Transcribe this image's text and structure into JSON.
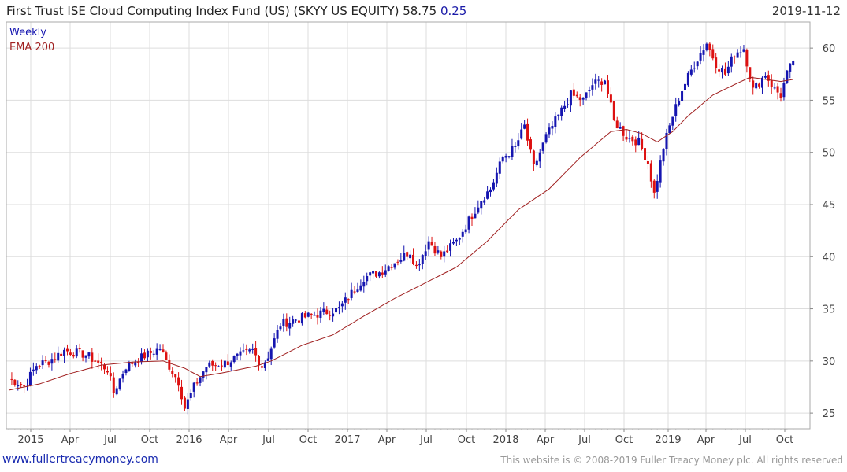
{
  "header": {
    "title": "First Trust ISE Cloud Computing Index Fund (US) (SKYY US EQUITY)",
    "last": "58.75",
    "change": "0.25",
    "date": "2019-11-12"
  },
  "footer": {
    "link": "www.fullertreacymoney.com",
    "copyright": "This website is © 2008-2019 Fuller Treacy Money plc. All rights reserved"
  },
  "colors": {
    "up": "#1515b0",
    "down": "#dd1111",
    "ema": "#a02020",
    "grid": "#dddddd",
    "frame": "#aaaaaa"
  },
  "chart_data": {
    "type": "candlestick",
    "title": "First Trust ISE Cloud Computing Index Fund (US) (SKYY US EQUITY)",
    "frequency": "Weekly",
    "legend": [
      {
        "label": "Weekly",
        "color": "#1515b0"
      },
      {
        "label": "EMA 200",
        "color": "#a02020"
      }
    ],
    "ylim": [
      23.5,
      62.5
    ],
    "y_ticks": [
      25,
      30,
      35,
      40,
      45,
      50,
      55,
      60
    ],
    "x_ticks": [
      "2015",
      "Apr",
      "Jul",
      "Oct",
      "2016",
      "Apr",
      "Jul",
      "Oct",
      "2017",
      "Apr",
      "Jul",
      "Oct",
      "2018",
      "Apr",
      "Jul",
      "Oct",
      "2019",
      "Apr",
      "Jul",
      "Oct"
    ],
    "weeks": 255,
    "key_closes": [
      [
        0,
        28.3
      ],
      [
        5,
        27.6
      ],
      [
        9,
        29.6
      ],
      [
        13,
        30.0
      ],
      [
        18,
        31.0
      ],
      [
        25,
        30.6
      ],
      [
        32,
        29.2
      ],
      [
        34,
        27.0
      ],
      [
        38,
        29.5
      ],
      [
        44,
        30.5
      ],
      [
        49,
        31.2
      ],
      [
        51,
        30.0
      ],
      [
        55,
        28.0
      ],
      [
        57,
        25.5
      ],
      [
        60,
        27.5
      ],
      [
        64,
        29.5
      ],
      [
        70,
        29.8
      ],
      [
        75,
        30.5
      ],
      [
        79,
        31.0
      ],
      [
        82,
        29.5
      ],
      [
        84,
        30.5
      ],
      [
        88,
        33.5
      ],
      [
        93,
        34.0
      ],
      [
        100,
        34.5
      ],
      [
        107,
        35.0
      ],
      [
        111,
        36.5
      ],
      [
        115,
        38.0
      ],
      [
        120,
        38.5
      ],
      [
        125,
        39.5
      ],
      [
        130,
        40.5
      ],
      [
        132,
        39.0
      ],
      [
        136,
        41.5
      ],
      [
        140,
        40.0
      ],
      [
        145,
        41.5
      ],
      [
        149,
        43.5
      ],
      [
        153,
        45.5
      ],
      [
        156,
        46.5
      ],
      [
        160,
        49.5
      ],
      [
        164,
        50.5
      ],
      [
        167,
        52.5
      ],
      [
        170,
        48.5
      ],
      [
        174,
        51.5
      ],
      [
        178,
        53.5
      ],
      [
        182,
        55.5
      ],
      [
        186,
        55.0
      ],
      [
        189,
        56.5
      ],
      [
        193,
        57.0
      ],
      [
        196,
        53.0
      ],
      [
        200,
        51.5
      ],
      [
        204,
        51.0
      ],
      [
        207,
        49.0
      ],
      [
        209,
        46.0
      ],
      [
        212,
        50.5
      ],
      [
        215,
        53.5
      ],
      [
        218,
        56.0
      ],
      [
        222,
        58.5
      ],
      [
        226,
        60.5
      ],
      [
        229,
        58.5
      ],
      [
        232,
        57.5
      ],
      [
        235,
        59.5
      ],
      [
        238,
        60.0
      ],
      [
        241,
        56.0
      ],
      [
        245,
        57.5
      ],
      [
        248,
        56.0
      ],
      [
        250,
        55.5
      ],
      [
        252,
        57.5
      ],
      [
        254,
        58.75
      ]
    ],
    "ema200_points": [
      [
        0,
        27.2
      ],
      [
        10,
        27.8
      ],
      [
        20,
        28.8
      ],
      [
        30,
        29.6
      ],
      [
        40,
        29.9
      ],
      [
        50,
        30.0
      ],
      [
        57,
        29.3
      ],
      [
        62,
        28.5
      ],
      [
        70,
        28.9
      ],
      [
        80,
        29.5
      ],
      [
        85,
        30.0
      ],
      [
        95,
        31.5
      ],
      [
        105,
        32.5
      ],
      [
        115,
        34.3
      ],
      [
        125,
        36.0
      ],
      [
        135,
        37.5
      ],
      [
        145,
        39.0
      ],
      [
        155,
        41.5
      ],
      [
        165,
        44.5
      ],
      [
        175,
        46.5
      ],
      [
        185,
        49.5
      ],
      [
        195,
        52.0
      ],
      [
        200,
        52.2
      ],
      [
        205,
        51.8
      ],
      [
        210,
        51.0
      ],
      [
        215,
        52.0
      ],
      [
        220,
        53.5
      ],
      [
        228,
        55.5
      ],
      [
        235,
        56.5
      ],
      [
        240,
        57.2
      ],
      [
        245,
        57.0
      ],
      [
        250,
        56.8
      ],
      [
        254,
        57.0
      ]
    ]
  }
}
